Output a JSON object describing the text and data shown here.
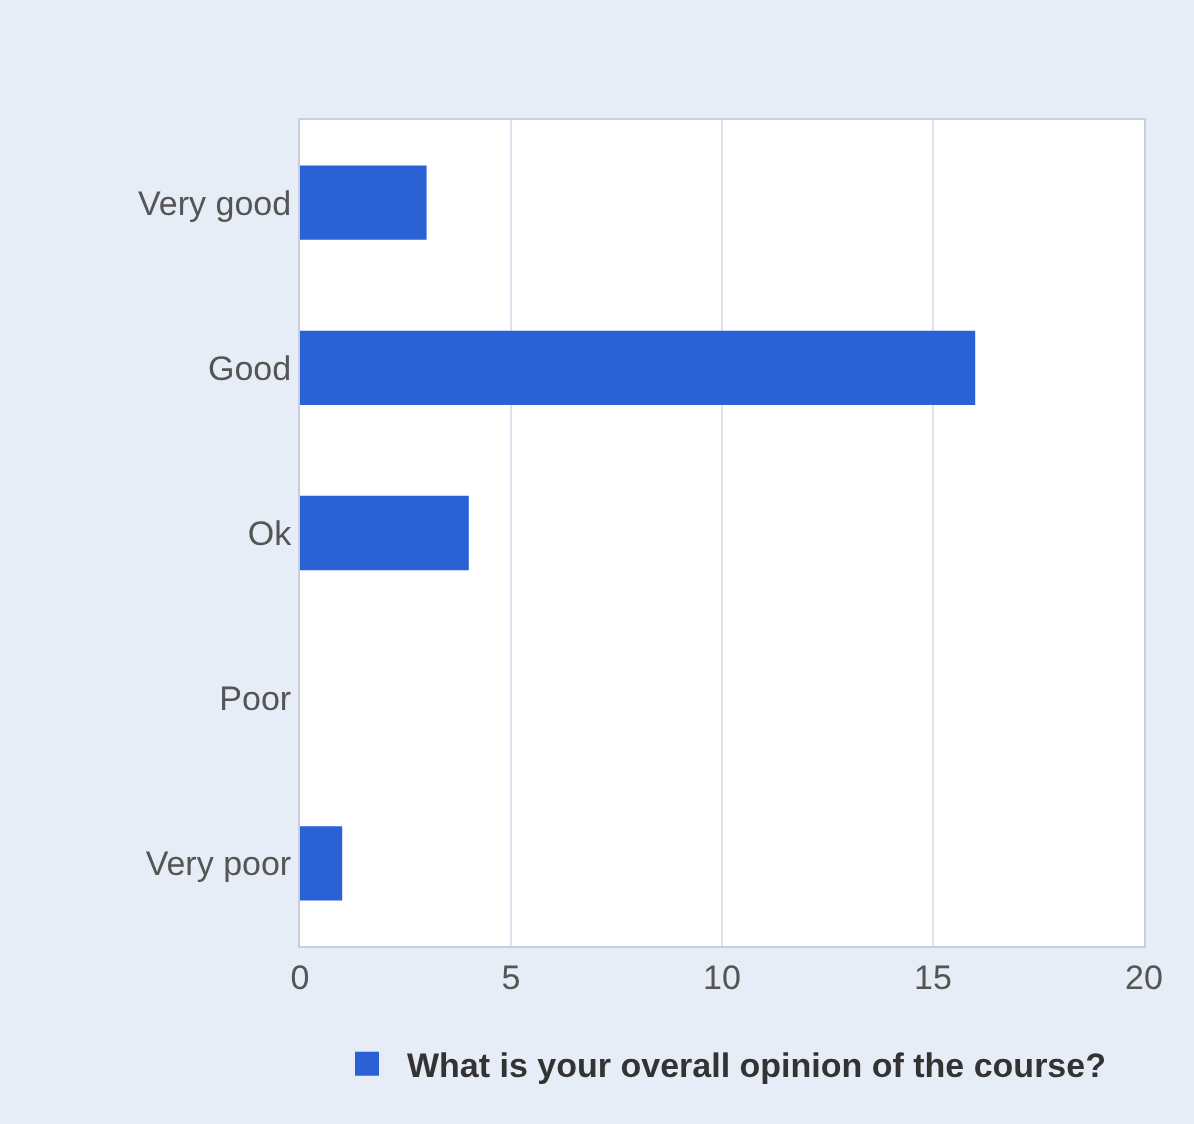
{
  "chart_data": {
    "type": "bar",
    "orientation": "horizontal",
    "categories": [
      "Very good",
      "Good",
      "Ok",
      "Poor",
      "Very poor"
    ],
    "series": [
      {
        "name": "What is your overall opinion of the course?",
        "color": "#2a62d6",
        "values": [
          3,
          16,
          4,
          0,
          1
        ]
      }
    ],
    "xlim": [
      0,
      20
    ],
    "xticks": [
      0,
      5,
      10,
      15,
      20
    ],
    "grid": "x",
    "legend": "bottom"
  }
}
